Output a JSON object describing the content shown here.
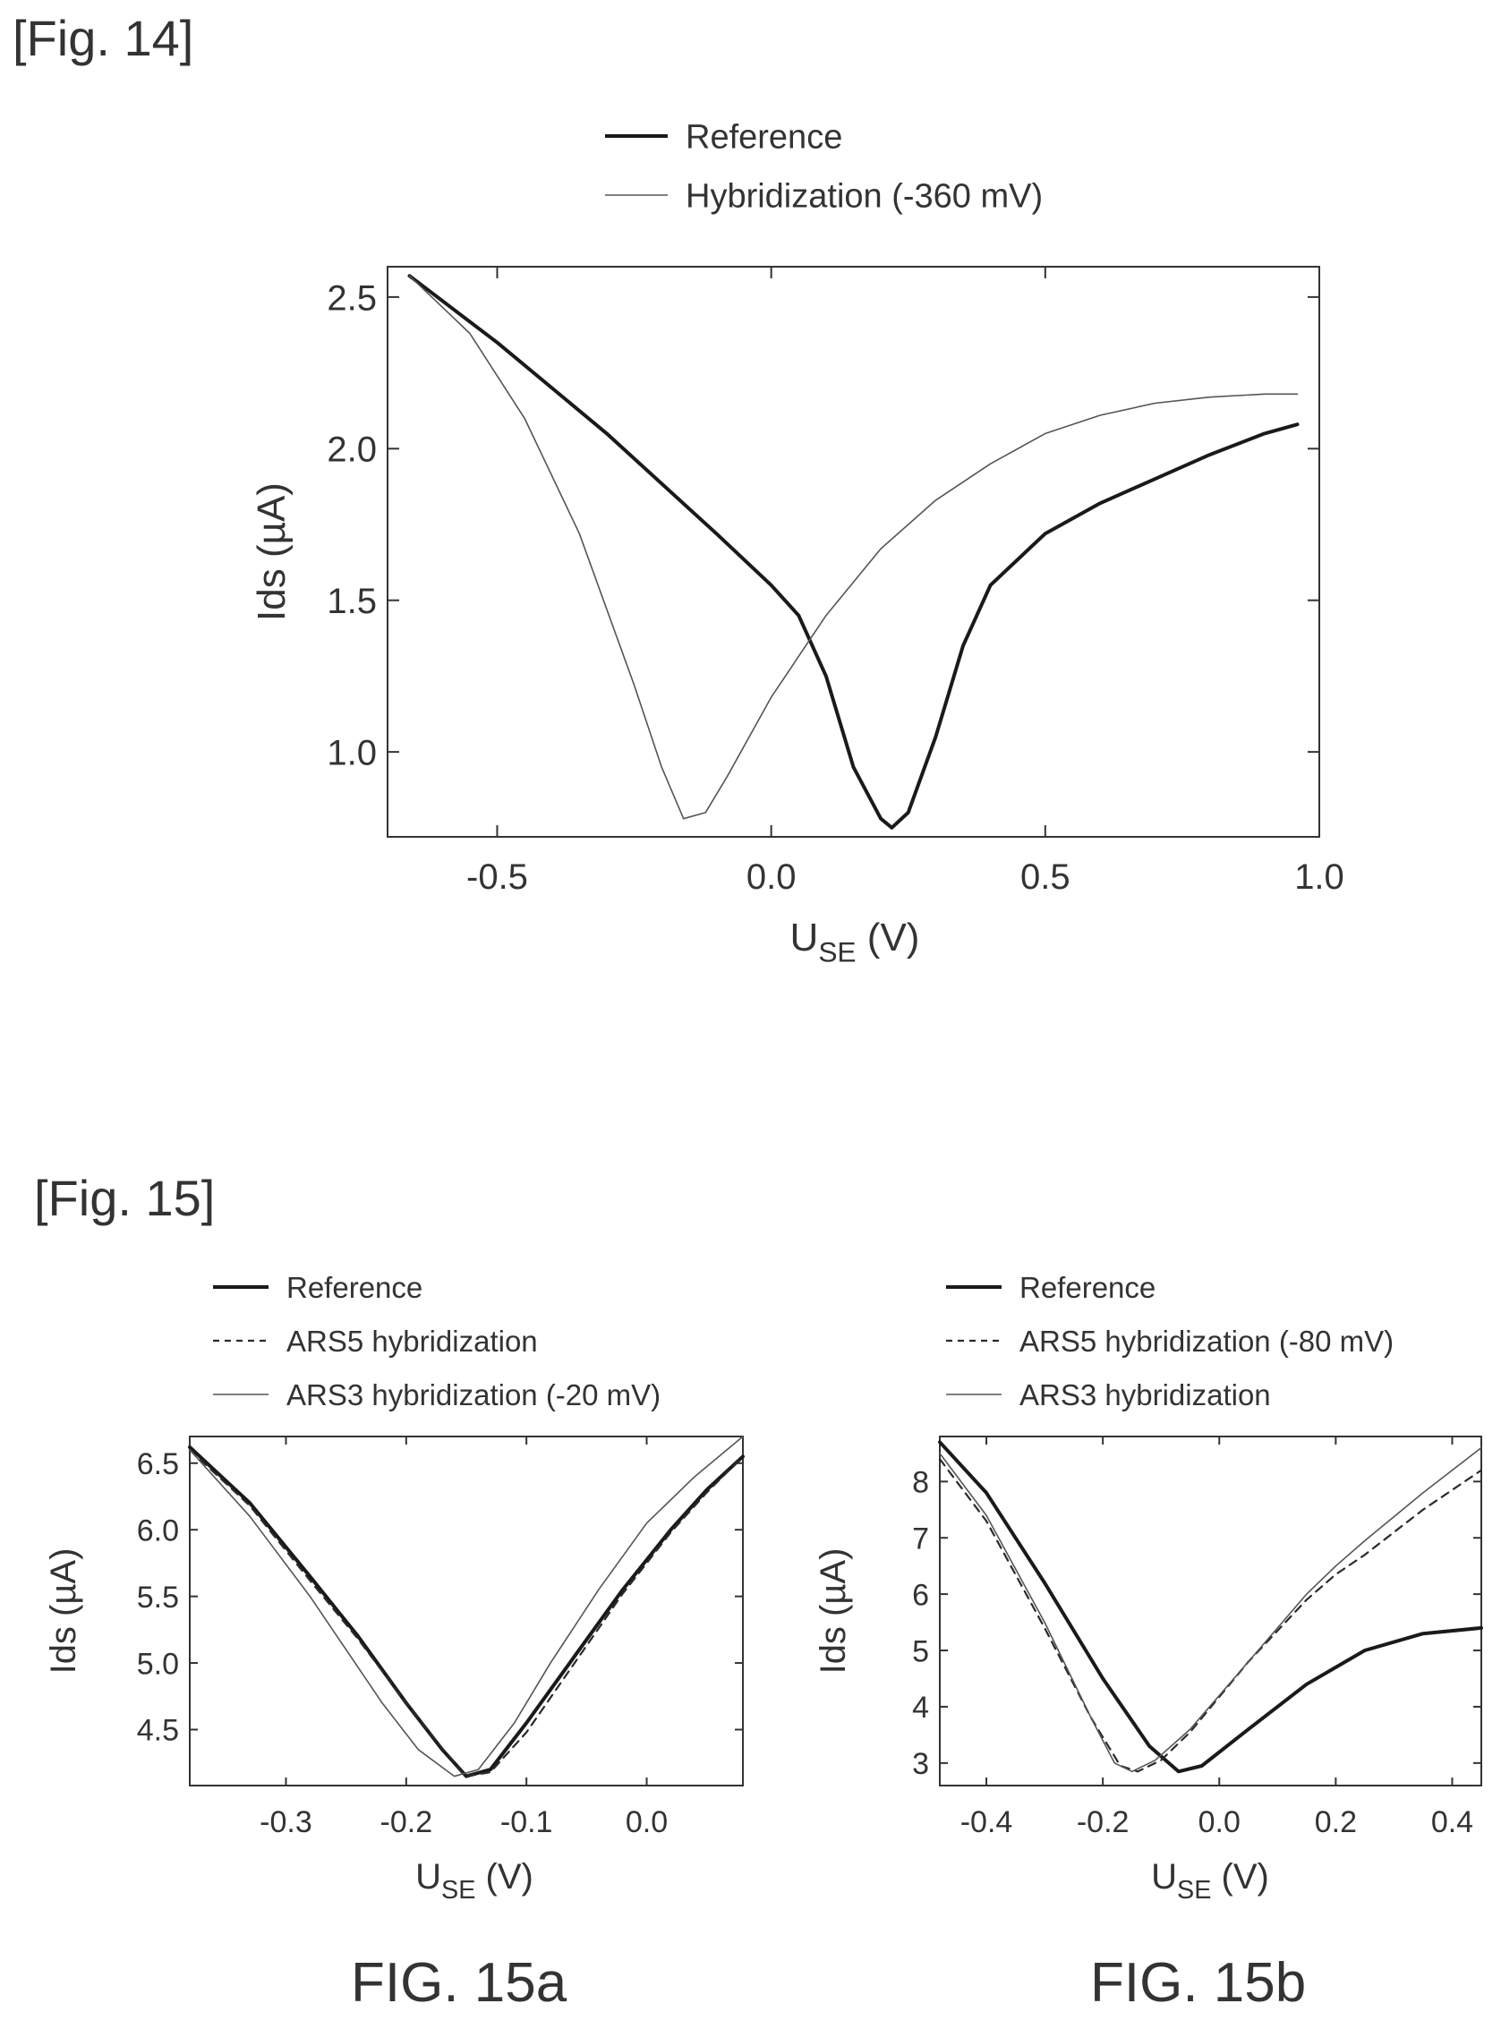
{
  "figures": {
    "fig14_label": "[Fig. 14]",
    "fig15_label": "[Fig. 15]",
    "fig15a_caption": "FIG. 15a",
    "fig15b_caption": "FIG. 15b"
  },
  "chart_data": [
    {
      "id": "fig14",
      "type": "line",
      "xlabel_main": "U",
      "xlabel_sub": "SE",
      "xlabel_unit": "(V)",
      "ylabel": "Ids (µA)",
      "xlim": [
        -0.7,
        1.0
      ],
      "ylim": [
        0.72,
        2.6
      ],
      "xticks": [
        -0.5,
        0.0,
        0.5,
        1.0
      ],
      "xtick_labels": [
        "-0.5",
        "0.0",
        "0.5",
        "1.0"
      ],
      "yticks": [
        1.0,
        1.5,
        2.0,
        2.5
      ],
      "ytick_labels": [
        "1.0",
        "1.5",
        "2.0",
        "2.5"
      ],
      "legend_position": "top",
      "series": [
        {
          "name": "Reference",
          "style": "solid-thick",
          "x": [
            -0.66,
            -0.5,
            -0.3,
            -0.1,
            0.0,
            0.05,
            0.1,
            0.15,
            0.2,
            0.22,
            0.25,
            0.3,
            0.35,
            0.4,
            0.5,
            0.6,
            0.7,
            0.8,
            0.9,
            0.96
          ],
          "y": [
            2.57,
            2.35,
            2.05,
            1.72,
            1.55,
            1.45,
            1.25,
            0.95,
            0.78,
            0.75,
            0.8,
            1.05,
            1.35,
            1.55,
            1.72,
            1.82,
            1.9,
            1.98,
            2.05,
            2.08
          ]
        },
        {
          "name": "Hybridization (-360 mV)",
          "style": "solid-thin",
          "x": [
            -0.66,
            -0.55,
            -0.45,
            -0.35,
            -0.25,
            -0.2,
            -0.16,
            -0.12,
            -0.08,
            0.0,
            0.1,
            0.2,
            0.3,
            0.4,
            0.5,
            0.6,
            0.7,
            0.8,
            0.9,
            0.96
          ],
          "y": [
            2.57,
            2.38,
            2.1,
            1.72,
            1.22,
            0.95,
            0.78,
            0.8,
            0.92,
            1.18,
            1.45,
            1.67,
            1.83,
            1.95,
            2.05,
            2.11,
            2.15,
            2.17,
            2.18,
            2.18
          ]
        }
      ]
    },
    {
      "id": "fig15a",
      "type": "line",
      "xlabel_main": "U",
      "xlabel_sub": "SE",
      "xlabel_unit": "(V)",
      "ylabel": "Ids (µA)",
      "xlim": [
        -0.38,
        0.08
      ],
      "ylim": [
        4.08,
        6.7
      ],
      "xticks": [
        -0.3,
        -0.2,
        -0.1,
        0.0
      ],
      "xtick_labels": [
        "-0.3",
        "-0.2",
        "-0.1",
        "0.0"
      ],
      "yticks": [
        4.5,
        5.0,
        5.5,
        6.0,
        6.5
      ],
      "ytick_labels": [
        "4.5",
        "5.0",
        "5.5",
        "6.0",
        "6.5"
      ],
      "legend_position": "top",
      "series": [
        {
          "name": "Reference",
          "style": "solid-thick",
          "x": [
            -0.38,
            -0.33,
            -0.28,
            -0.24,
            -0.2,
            -0.17,
            -0.15,
            -0.13,
            -0.1,
            -0.06,
            -0.02,
            0.02,
            0.05,
            0.08
          ],
          "y": [
            6.62,
            6.2,
            5.65,
            5.2,
            4.7,
            4.35,
            4.15,
            4.2,
            4.55,
            5.05,
            5.55,
            6.0,
            6.3,
            6.55
          ]
        },
        {
          "name": "ARS5 hybridization",
          "style": "dashed",
          "x": [
            -0.38,
            -0.33,
            -0.28,
            -0.24,
            -0.2,
            -0.17,
            -0.15,
            -0.13,
            -0.1,
            -0.06,
            -0.02,
            0.02,
            0.05,
            0.08
          ],
          "y": [
            6.6,
            6.18,
            5.62,
            5.18,
            4.7,
            4.36,
            4.15,
            4.18,
            4.48,
            5.0,
            5.52,
            5.98,
            6.28,
            6.55
          ]
        },
        {
          "name": "ARS3 hybridization (-20 mV)",
          "style": "solid-thin",
          "x": [
            -0.38,
            -0.33,
            -0.28,
            -0.25,
            -0.22,
            -0.19,
            -0.16,
            -0.14,
            -0.11,
            -0.08,
            -0.04,
            0.0,
            0.04,
            0.08
          ],
          "y": [
            6.6,
            6.1,
            5.5,
            5.1,
            4.7,
            4.35,
            4.15,
            4.2,
            4.55,
            5.0,
            5.55,
            6.05,
            6.4,
            6.7
          ]
        }
      ]
    },
    {
      "id": "fig15b",
      "type": "line",
      "xlabel_main": "U",
      "xlabel_sub": "SE",
      "xlabel_unit": "(V)",
      "ylabel": "Ids (µA)",
      "xlim": [
        -0.48,
        0.45
      ],
      "ylim": [
        2.6,
        8.8
      ],
      "xticks": [
        -0.4,
        -0.2,
        0.0,
        0.2,
        0.4
      ],
      "xtick_labels": [
        "-0.4",
        "-0.2",
        "0.0",
        "0.2",
        "0.4"
      ],
      "yticks": [
        3,
        4,
        5,
        6,
        7,
        8
      ],
      "ytick_labels": [
        "3",
        "4",
        "5",
        "6",
        "7",
        "8"
      ],
      "legend_position": "top",
      "series": [
        {
          "name": "Reference",
          "style": "solid-thick",
          "x": [
            -0.48,
            -0.4,
            -0.3,
            -0.2,
            -0.12,
            -0.07,
            -0.03,
            0.05,
            0.15,
            0.2,
            0.25,
            0.35,
            0.45
          ],
          "y": [
            8.7,
            7.8,
            6.2,
            4.5,
            3.3,
            2.85,
            2.95,
            3.6,
            4.4,
            4.7,
            5.0,
            5.3,
            5.4
          ]
        },
        {
          "name": "ARS5 hybridization (-80 mV)",
          "style": "dashed",
          "x": [
            -0.48,
            -0.4,
            -0.3,
            -0.22,
            -0.17,
            -0.14,
            -0.1,
            -0.05,
            0.05,
            0.15,
            0.2,
            0.25,
            0.35,
            0.45
          ],
          "y": [
            8.4,
            7.3,
            5.4,
            3.8,
            2.95,
            2.85,
            3.05,
            3.55,
            4.8,
            5.9,
            6.35,
            6.7,
            7.5,
            8.2
          ]
        },
        {
          "name": "ARS3 hybridization",
          "style": "solid-thin",
          "x": [
            -0.48,
            -0.4,
            -0.3,
            -0.22,
            -0.18,
            -0.15,
            -0.11,
            -0.05,
            0.05,
            0.15,
            0.2,
            0.25,
            0.35,
            0.45
          ],
          "y": [
            8.5,
            7.4,
            5.5,
            3.8,
            3.0,
            2.85,
            3.05,
            3.6,
            4.8,
            6.0,
            6.5,
            6.95,
            7.8,
            8.6
          ]
        }
      ]
    }
  ]
}
